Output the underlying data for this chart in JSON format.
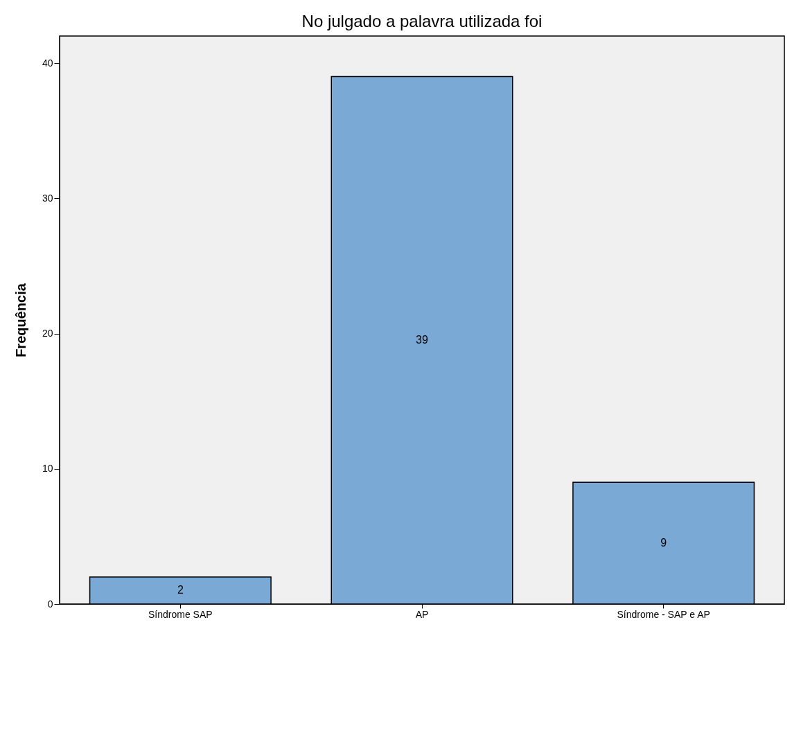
{
  "chart_data": {
    "type": "bar",
    "title": "No julgado a palavra utilizada foi",
    "ylabel": "Frequência",
    "categories": [
      "Síndrome SAP",
      "AP",
      "Síndrome - SAP e AP"
    ],
    "values": [
      2,
      39,
      9
    ],
    "color": "#7ba9d5",
    "ylim": [
      0,
      42
    ],
    "yticks": [
      0,
      10,
      20,
      30,
      40
    ],
    "grid": false,
    "data_labels": true
  }
}
